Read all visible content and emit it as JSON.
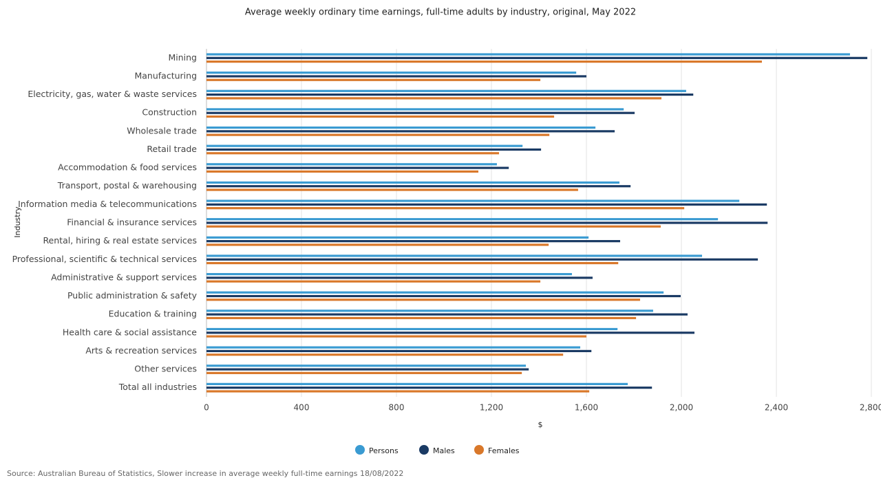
{
  "chart_data": {
    "type": "hbar",
    "title": "Average weekly ordinary time earnings, full-time adults by industry, original, May 2022",
    "x_label": "$",
    "y_label": "Industry",
    "source": "Source: Australian Bureau of Statistics, Slower increase in average weekly full-time earnings 18/08/2022",
    "categories": [
      "Mining",
      "Manufacturing",
      "Electricity, gas, water & waste services",
      "Construction",
      "Wholesale trade",
      "Retail trade",
      "Accommodation & food services",
      "Transport, postal & warehousing",
      "Information media & telecommunications",
      "Financial & insurance services",
      "Rental, hiring & real estate services",
      "Professional, scientific & technical services",
      "Administrative & support services",
      "Public administration & safety",
      "Education & training",
      "Health care & social assistance",
      "Arts & recreation services",
      "Other services",
      "Total all industries"
    ],
    "series": [
      {
        "name": "Persons",
        "color": "#3a9bd2",
        "values": [
          2710,
          1557,
          2020,
          1757,
          1638,
          1331,
          1223,
          1739,
          2244,
          2154,
          1609,
          2087,
          1539,
          1925,
          1881,
          1731,
          1574,
          1345,
          1774
        ]
      },
      {
        "name": "Males",
        "color": "#1a3a64",
        "values": [
          2783,
          1600,
          2050,
          1803,
          1719,
          1409,
          1273,
          1786,
          2360,
          2363,
          1742,
          2322,
          1626,
          1997,
          2026,
          2055,
          1621,
          1357,
          1876
        ]
      },
      {
        "name": "Females",
        "color": "#d9782a",
        "values": [
          2339,
          1406,
          1916,
          1464,
          1444,
          1232,
          1145,
          1565,
          2012,
          1913,
          1441,
          1734,
          1406,
          1826,
          1809,
          1600,
          1502,
          1328,
          1612
        ]
      }
    ],
    "xlim": [
      0,
      2800
    ],
    "xticks": [
      0,
      400,
      800,
      {
        "value": 1200,
        "label": "1,200"
      },
      {
        "value": 1600,
        "label": "1,600"
      },
      {
        "value": 2000,
        "label": "2,000"
      },
      {
        "value": 2400,
        "label": "2,400"
      },
      {
        "value": 2800,
        "label": "2,800"
      }
    ],
    "grid": true
  }
}
